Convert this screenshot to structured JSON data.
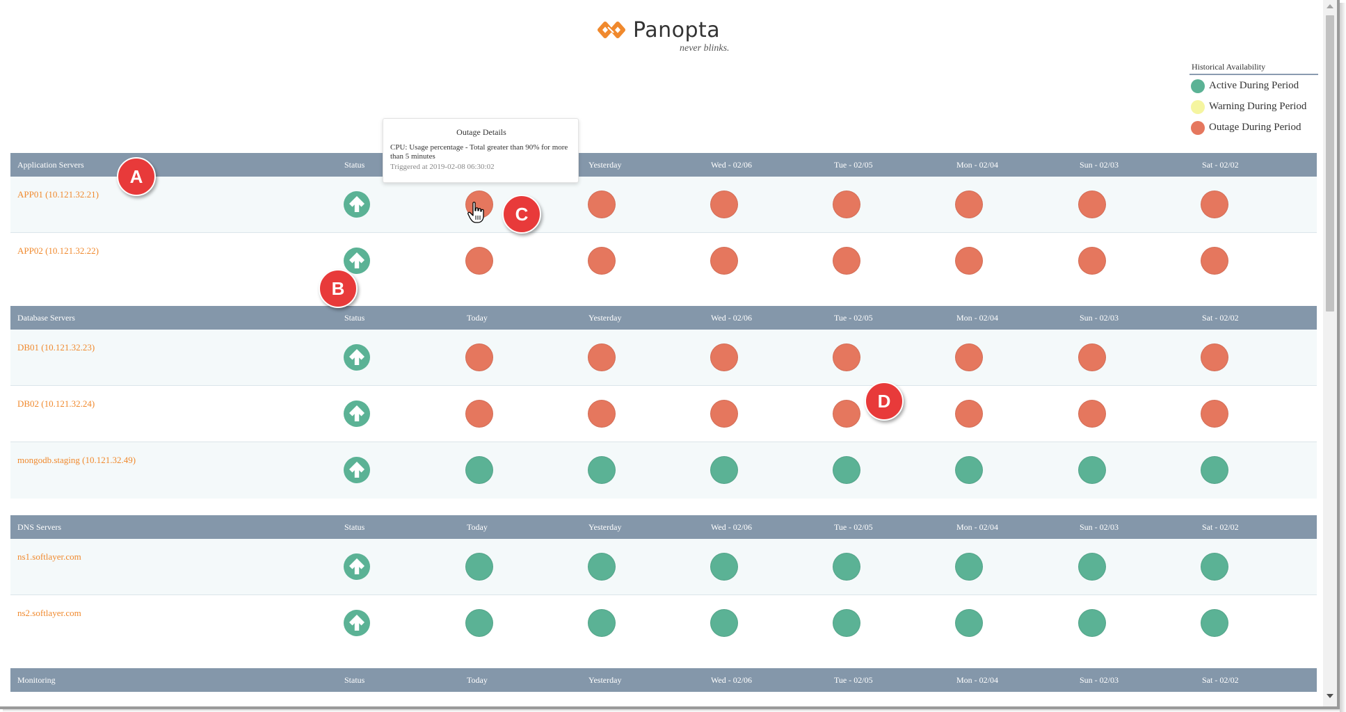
{
  "brand": {
    "name": "Panopta",
    "tagline": "never blinks."
  },
  "legend": {
    "title": "Historical Availability",
    "items": [
      {
        "label": "Active During Period",
        "color": "#5bb295"
      },
      {
        "label": "Warning During Period",
        "color": "#f5f5a0"
      },
      {
        "label": "Outage During Period",
        "color": "#e5775e"
      }
    ]
  },
  "columns": [
    "Status",
    "Today",
    "Yesterday",
    "Wed - 02/06",
    "Tue - 02/05",
    "Mon - 02/04",
    "Sun - 02/03",
    "Sat - 02/02"
  ],
  "groups": [
    {
      "name": "Application Servers",
      "rows": [
        {
          "host": "APP01 (10.121.32.21)",
          "status": "up",
          "history": [
            "outage",
            "outage",
            "outage",
            "outage",
            "outage",
            "outage",
            "outage"
          ]
        },
        {
          "host": "APP02 (10.121.32.22)",
          "status": "up",
          "history": [
            "outage",
            "outage",
            "outage",
            "outage",
            "outage",
            "outage",
            "outage"
          ]
        }
      ]
    },
    {
      "name": "Database Servers",
      "rows": [
        {
          "host": "DB01 (10.121.32.23)",
          "status": "up",
          "history": [
            "outage",
            "outage",
            "outage",
            "outage",
            "outage",
            "outage",
            "outage"
          ]
        },
        {
          "host": "DB02 (10.121.32.24)",
          "status": "up",
          "history": [
            "outage",
            "outage",
            "outage",
            "outage",
            "outage",
            "outage",
            "outage"
          ]
        },
        {
          "host": "mongodb.staging (10.121.32.49)",
          "status": "up",
          "history": [
            "active",
            "active",
            "active",
            "active",
            "active",
            "active",
            "active"
          ]
        }
      ]
    },
    {
      "name": "DNS Servers",
      "rows": [
        {
          "host": "ns1.softlayer.com",
          "status": "up",
          "history": [
            "active",
            "active",
            "active",
            "active",
            "active",
            "active",
            "active"
          ]
        },
        {
          "host": "ns2.softlayer.com",
          "status": "up",
          "history": [
            "active",
            "active",
            "active",
            "active",
            "active",
            "active",
            "active"
          ]
        }
      ]
    },
    {
      "name": "Monitoring",
      "rows": []
    }
  ],
  "tooltip": {
    "title": "Outage Details",
    "body": "CPU: Usage percentage - Total greater than 90% for more than 5 minutes",
    "triggered": "Triggered at 2019-02-08 06:30:02"
  },
  "callouts": [
    "A",
    "B",
    "C",
    "D"
  ],
  "colors": {
    "header": "#8497aa",
    "link": "#f0892d",
    "outage": "#e5775e",
    "active": "#5bb295",
    "warning": "#f5f5a0",
    "status_up": "#5bb295"
  }
}
